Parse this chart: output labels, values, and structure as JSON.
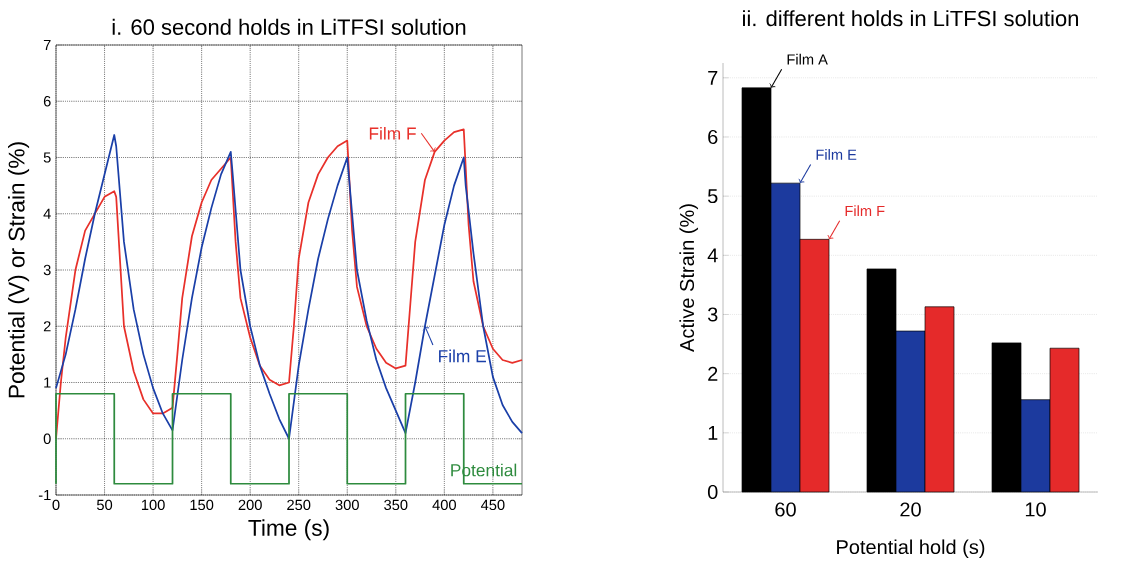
{
  "chart_data": [
    {
      "type": "line",
      "title": "i. 60 second holds in LiTFSI solution",
      "xlabel": "Time (s)",
      "ylabel": "Potential (V) or Strain (%)",
      "xlim": [
        0,
        480
      ],
      "ylim": [
        -1,
        7
      ],
      "xticks": [
        0,
        50,
        100,
        150,
        200,
        250,
        300,
        350,
        400,
        450
      ],
      "yticks": [
        -1,
        0,
        1,
        2,
        3,
        4,
        5,
        6,
        7
      ],
      "grid": true,
      "line_style": "solid",
      "marker": "none",
      "series": [
        {
          "name": "Film F",
          "color": "#e8302a",
          "x": [
            0,
            5,
            10,
            20,
            30,
            40,
            50,
            60,
            62,
            70,
            80,
            90,
            100,
            110,
            120,
            125,
            130,
            140,
            150,
            160,
            170,
            180,
            185,
            190,
            200,
            210,
            220,
            230,
            240,
            245,
            250,
            260,
            270,
            280,
            290,
            300,
            305,
            310,
            320,
            330,
            340,
            350,
            360,
            365,
            370,
            380,
            390,
            400,
            410,
            420,
            425,
            430,
            440,
            450,
            460,
            470,
            480
          ],
          "values": [
            0,
            1.0,
            1.8,
            3.0,
            3.7,
            4.0,
            4.3,
            4.4,
            4.3,
            2.0,
            1.2,
            0.7,
            0.45,
            0.45,
            0.55,
            1.5,
            2.5,
            3.6,
            4.2,
            4.6,
            4.8,
            5.0,
            3.5,
            2.5,
            1.8,
            1.3,
            1.05,
            0.95,
            1.0,
            2.0,
            3.2,
            4.2,
            4.7,
            5.0,
            5.2,
            5.3,
            3.7,
            2.7,
            2.0,
            1.6,
            1.35,
            1.25,
            1.3,
            2.4,
            3.5,
            4.6,
            5.1,
            5.3,
            5.45,
            5.5,
            3.8,
            2.8,
            2.0,
            1.6,
            1.4,
            1.35,
            1.4
          ]
        },
        {
          "name": "Film E",
          "color": "#1a3fa8",
          "x": [
            0,
            10,
            20,
            30,
            40,
            50,
            60,
            62,
            70,
            80,
            90,
            100,
            110,
            120,
            130,
            140,
            150,
            160,
            170,
            180,
            182,
            190,
            200,
            210,
            220,
            230,
            240,
            250,
            260,
            270,
            280,
            290,
            300,
            302,
            310,
            320,
            330,
            340,
            350,
            360,
            370,
            380,
            390,
            400,
            410,
            420,
            422,
            430,
            440,
            450,
            460,
            470,
            480
          ],
          "values": [
            0.9,
            1.5,
            2.3,
            3.2,
            4.0,
            4.7,
            5.4,
            5.2,
            3.5,
            2.3,
            1.5,
            0.9,
            0.45,
            0.15,
            1.4,
            2.5,
            3.4,
            4.1,
            4.7,
            5.1,
            4.7,
            3.0,
            2.0,
            1.3,
            0.8,
            0.35,
            0.0,
            1.3,
            2.3,
            3.2,
            3.9,
            4.5,
            5.0,
            4.6,
            3.0,
            2.1,
            1.4,
            0.9,
            0.5,
            0.1,
            1.0,
            2.0,
            2.9,
            3.8,
            4.5,
            5.0,
            4.5,
            3.3,
            2.0,
            1.1,
            0.6,
            0.3,
            0.1
          ]
        },
        {
          "name": "Potential",
          "type": "step",
          "color": "#2e8b3e",
          "x": [
            0,
            0,
            60,
            120,
            180,
            240,
            300,
            360,
            420,
            480
          ],
          "values": [
            -0.8,
            0.8,
            -0.8,
            0.8,
            -0.8,
            0.8,
            -0.8,
            0.8,
            -0.8,
            -0.8
          ]
        }
      ]
    },
    {
      "type": "bar",
      "title": "ii. different holds in LiTFSI solution",
      "xlabel": "Potential hold (s)",
      "ylabel": "Active Strain (%)",
      "categories": [
        "60",
        "20",
        "10"
      ],
      "ylim": [
        0,
        7.25
      ],
      "yticks": [
        0,
        1,
        2,
        3,
        4,
        5,
        6,
        7
      ],
      "grid": "y",
      "series": [
        {
          "name": "Film A",
          "color": "#000000",
          "values": [
            6.83,
            3.77,
            2.52
          ]
        },
        {
          "name": "Film E",
          "color": "#1c3a9e",
          "values": [
            5.22,
            2.72,
            1.56
          ]
        },
        {
          "name": "Film F",
          "color": "#e52a2a",
          "values": [
            4.27,
            3.13,
            2.43
          ]
        }
      ]
    }
  ]
}
